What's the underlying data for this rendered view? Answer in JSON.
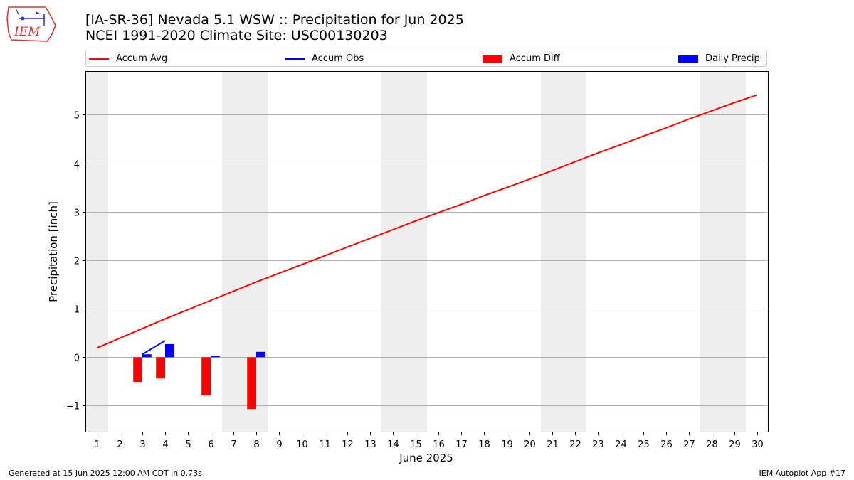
{
  "header": {
    "title_line1": "[IA-SR-36] Nevada 5.1 WSW :: Precipitation for Jun 2025",
    "title_line2": "NCEI 1991-2020 Climate Site: USC00130203",
    "logo_text": "IEM"
  },
  "legend": [
    {
      "label": "Accum Avg",
      "color": "#ff0000",
      "kind": "line"
    },
    {
      "label": "Accum Obs",
      "color": "#0000ff",
      "kind": "line"
    },
    {
      "label": "Accum Diff",
      "color": "#ff0000",
      "kind": "patch"
    },
    {
      "label": "Daily Precip",
      "color": "#0000ff",
      "kind": "patch"
    }
  ],
  "footer": {
    "left": "Generated at 15 Jun 2025 12:00 AM CDT in 0.73s",
    "right": "IEM Autoplot App #17"
  },
  "chart_data": {
    "type": "bar",
    "xlabel": "June 2025",
    "ylabel": "Precipitation [inch]",
    "xlim": [
      0.5,
      30.5
    ],
    "ylim": [
      -1.55,
      5.9
    ],
    "x_ticks": [
      1,
      2,
      3,
      4,
      5,
      6,
      7,
      8,
      9,
      10,
      11,
      12,
      13,
      14,
      15,
      16,
      17,
      18,
      19,
      20,
      21,
      22,
      23,
      24,
      25,
      26,
      27,
      28,
      29,
      30
    ],
    "y_ticks": [
      -1,
      0,
      1,
      2,
      3,
      4,
      5
    ],
    "y_tick_labels": [
      "−1",
      "0",
      "1",
      "2",
      "3",
      "4",
      "5"
    ],
    "grid": "horizontal",
    "weekend_shading": [
      [
        0.5,
        1.5
      ],
      [
        6.5,
        8.5
      ],
      [
        13.5,
        15.5
      ],
      [
        20.5,
        22.5
      ],
      [
        27.5,
        29.5
      ]
    ],
    "legend_placement": "top",
    "series": [
      {
        "name": "Accum Avg",
        "type": "line",
        "color": "#ff0000",
        "x": [
          1,
          2,
          3,
          4,
          5,
          6,
          7,
          8,
          9,
          10,
          11,
          12,
          13,
          14,
          15,
          16,
          17,
          18,
          19,
          20,
          21,
          22,
          23,
          24,
          25,
          26,
          27,
          28,
          29,
          30
        ],
        "values": [
          0.19,
          0.39,
          0.59,
          0.79,
          0.98,
          1.17,
          1.36,
          1.55,
          1.73,
          1.91,
          2.09,
          2.27,
          2.45,
          2.63,
          2.81,
          2.98,
          3.15,
          3.33,
          3.5,
          3.67,
          3.85,
          4.03,
          4.21,
          4.38,
          4.56,
          4.73,
          4.91,
          5.08,
          5.25,
          5.41
        ]
      },
      {
        "name": "Accum Obs",
        "type": "line",
        "color": "#0000ff",
        "x": [
          3,
          4
        ],
        "values": [
          0.06,
          0.34
        ]
      },
      {
        "name": "Accum Diff",
        "type": "bar",
        "color": "#ff0000",
        "x": [
          3,
          4,
          6,
          8
        ],
        "values": [
          -0.51,
          -0.44,
          -0.79,
          -1.07
        ]
      },
      {
        "name": "Daily Precip",
        "type": "bar",
        "color": "#0000ff",
        "x": [
          3,
          4,
          6,
          8
        ],
        "values": [
          0.06,
          0.27,
          0.03,
          0.11
        ]
      }
    ]
  }
}
